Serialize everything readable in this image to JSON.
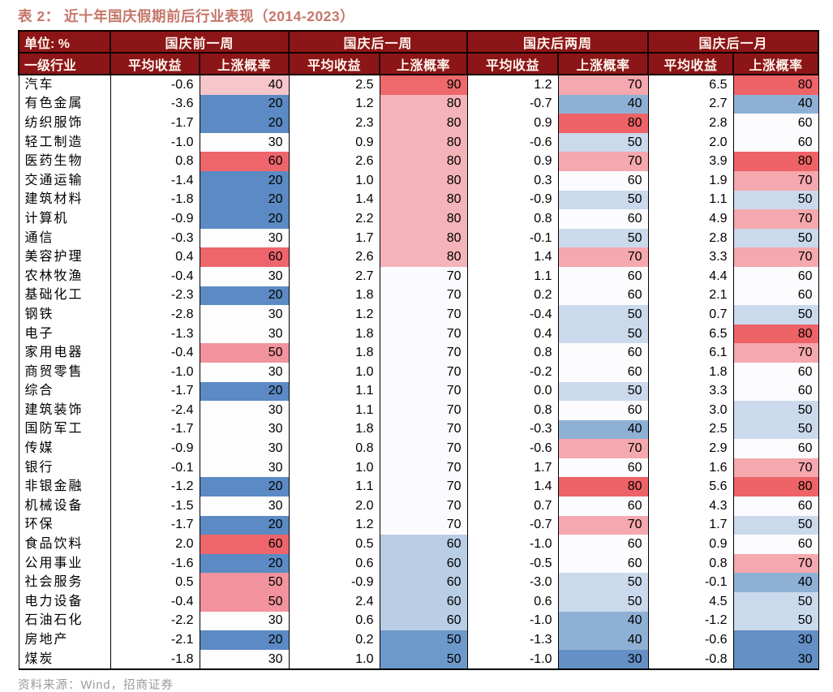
{
  "title": "表 2： 近十年国庆假期前后行业表现（2014-2023）",
  "unit_label": "单位: %",
  "row_header_label": "一级行业",
  "footer": {
    "source_text": "资料来源：Wind，招商证券"
  },
  "colors": {
    "header_bg": "#8c1617",
    "header_text": "#ffffff",
    "title_text": "#c4766a",
    "source_text": "#9b9b9b",
    "border": "#000000"
  },
  "heatmap": {
    "note": "per-column red-white-blue scale keyed by win-rate value",
    "col_scales": [
      {
        "20": "#5b8ac4",
        "30": "#fdfdfe",
        "40": "#f7c6ca",
        "50": "#f2939d",
        "60": "#ee656c"
      },
      {
        "50": "#6d98ca",
        "60": "#b9cde5",
        "70": "#fbfbfd",
        "80": "#f4b3b8",
        "90": "#ed696b"
      },
      {
        "30": "#6490c5",
        "40": "#8fb0d5",
        "50": "#cbd9ec",
        "60": "#fcfcfe",
        "70": "#f5a8ad",
        "80": "#ee6367"
      },
      {
        "30": "#6490c5",
        "40": "#8fb0d5",
        "50": "#cbd9ec",
        "60": "#fcfcfe",
        "70": "#f5a8ad",
        "80": "#ee6367"
      }
    ]
  },
  "chart_data": {
    "type": "table",
    "title": "近十年国庆假期前后行业表现（2014-2023）",
    "unit": "%",
    "row_header": "一级行业",
    "column_groups": [
      "国庆前一周",
      "国庆后一周",
      "国庆后两周",
      "国庆后一月"
    ],
    "sub_columns": [
      "平均收益",
      "上涨概率"
    ],
    "rows": [
      {
        "industry": "汽车",
        "values": [
          "-0.6",
          40,
          "2.5",
          90,
          "1.2",
          70,
          "6.5",
          80
        ]
      },
      {
        "industry": "有色金属",
        "values": [
          "-3.6",
          20,
          "1.2",
          80,
          "-0.7",
          40,
          "2.7",
          40
        ]
      },
      {
        "industry": "纺织服饰",
        "values": [
          "-1.7",
          20,
          "2.3",
          80,
          "0.9",
          80,
          "2.8",
          60
        ]
      },
      {
        "industry": "轻工制造",
        "values": [
          "-1.0",
          30,
          "0.9",
          80,
          "-0.6",
          50,
          "2.0",
          60
        ]
      },
      {
        "industry": "医药生物",
        "values": [
          "0.8",
          60,
          "2.6",
          80,
          "0.9",
          70,
          "3.9",
          80
        ]
      },
      {
        "industry": "交通运输",
        "values": [
          "-1.4",
          20,
          "1.0",
          80,
          "0.3",
          60,
          "1.9",
          70
        ]
      },
      {
        "industry": "建筑材料",
        "values": [
          "-1.8",
          20,
          "1.4",
          80,
          "-0.9",
          50,
          "1.1",
          50
        ]
      },
      {
        "industry": "计算机",
        "values": [
          "-0.9",
          20,
          "2.2",
          80,
          "0.8",
          60,
          "4.9",
          70
        ]
      },
      {
        "industry": "通信",
        "values": [
          "-0.3",
          30,
          "1.7",
          80,
          "-0.1",
          50,
          "2.8",
          50
        ]
      },
      {
        "industry": "美容护理",
        "values": [
          "0.4",
          60,
          "2.6",
          80,
          "1.4",
          70,
          "3.3",
          70
        ]
      },
      {
        "industry": "农林牧渔",
        "values": [
          "-0.4",
          30,
          "2.7",
          70,
          "1.1",
          60,
          "4.4",
          60
        ]
      },
      {
        "industry": "基础化工",
        "values": [
          "-2.3",
          20,
          "1.8",
          70,
          "0.2",
          60,
          "2.1",
          60
        ]
      },
      {
        "industry": "钢铁",
        "values": [
          "-2.8",
          30,
          "1.2",
          70,
          "-0.4",
          50,
          "0.7",
          50
        ]
      },
      {
        "industry": "电子",
        "values": [
          "-1.3",
          30,
          "1.8",
          70,
          "0.4",
          50,
          "6.5",
          80
        ]
      },
      {
        "industry": "家用电器",
        "values": [
          "-0.4",
          50,
          "1.8",
          70,
          "0.8",
          60,
          "6.1",
          70
        ]
      },
      {
        "industry": "商贸零售",
        "values": [
          "-1.0",
          30,
          "1.0",
          70,
          "-0.2",
          60,
          "1.8",
          60
        ]
      },
      {
        "industry": "综合",
        "values": [
          "-1.7",
          20,
          "1.1",
          70,
          "0.0",
          50,
          "3.3",
          60
        ]
      },
      {
        "industry": "建筑装饰",
        "values": [
          "-2.4",
          30,
          "1.1",
          70,
          "0.8",
          60,
          "3.0",
          50
        ]
      },
      {
        "industry": "国防军工",
        "values": [
          "-1.7",
          30,
          "1.8",
          70,
          "-0.3",
          40,
          "2.5",
          50
        ]
      },
      {
        "industry": "传媒",
        "values": [
          "-0.9",
          30,
          "0.8",
          70,
          "-0.6",
          70,
          "2.9",
          60
        ]
      },
      {
        "industry": "银行",
        "values": [
          "-0.1",
          30,
          "1.0",
          70,
          "1.7",
          60,
          "1.6",
          70
        ]
      },
      {
        "industry": "非银金融",
        "values": [
          "-1.2",
          20,
          "1.1",
          70,
          "1.4",
          80,
          "5.6",
          80
        ]
      },
      {
        "industry": "机械设备",
        "values": [
          "-1.5",
          30,
          "2.0",
          70,
          "0.7",
          60,
          "4.3",
          60
        ]
      },
      {
        "industry": "环保",
        "values": [
          "-1.7",
          20,
          "1.2",
          70,
          "-0.7",
          70,
          "1.7",
          50
        ]
      },
      {
        "industry": "食品饮料",
        "values": [
          "2.0",
          60,
          "0.5",
          60,
          "-1.0",
          60,
          "0.9",
          60
        ]
      },
      {
        "industry": "公用事业",
        "values": [
          "-1.6",
          20,
          "0.6",
          60,
          "-0.5",
          60,
          "0.8",
          70
        ]
      },
      {
        "industry": "社会服务",
        "values": [
          "0.5",
          50,
          "-0.9",
          60,
          "-3.0",
          50,
          "-0.1",
          40
        ]
      },
      {
        "industry": "电力设备",
        "values": [
          "-0.4",
          50,
          "2.4",
          60,
          "0.6",
          50,
          "4.5",
          50
        ]
      },
      {
        "industry": "石油石化",
        "values": [
          "-2.2",
          30,
          "0.6",
          60,
          "-1.0",
          40,
          "-1.2",
          50
        ]
      },
      {
        "industry": "房地产",
        "values": [
          "-2.1",
          20,
          "0.2",
          50,
          "-1.3",
          40,
          "-0.6",
          30
        ]
      },
      {
        "industry": "煤炭",
        "values": [
          "-1.8",
          30,
          "1.0",
          50,
          "-1.0",
          30,
          "-0.8",
          30
        ]
      }
    ]
  }
}
